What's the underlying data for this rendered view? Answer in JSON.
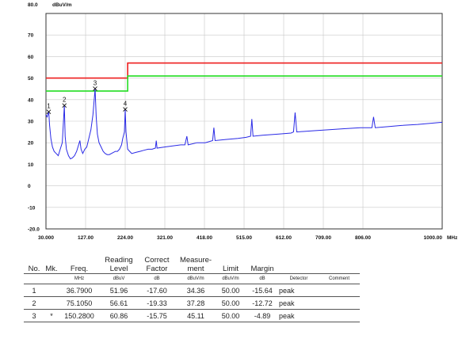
{
  "chart_data": {
    "type": "line",
    "ylabel": "dBuV/m",
    "xlabel": "MHz",
    "xlim": [
      30,
      1000
    ],
    "ylim": [
      -20,
      80
    ],
    "x_ticks": [
      "30.000",
      "127.00",
      "224.00",
      "321.00",
      "418.00",
      "515.00",
      "612.00",
      "709.00",
      "806.00",
      "1000.00"
    ],
    "x_tick_values": [
      30,
      127,
      224,
      321,
      418,
      515,
      612,
      709,
      806,
      1000
    ],
    "y_ticks": [
      "80.0",
      "70",
      "60",
      "50",
      "40",
      "30",
      "20",
      "10",
      "0",
      "-10",
      "-20.0"
    ],
    "y_tick_values": [
      80,
      70,
      60,
      50,
      40,
      30,
      20,
      10,
      0,
      -10,
      -20
    ],
    "grid": true,
    "limit_lines": [
      {
        "color": "#ee1c1c",
        "points": [
          [
            30,
            50
          ],
          [
            230,
            50
          ],
          [
            230,
            57
          ],
          [
            1000,
            57
          ]
        ]
      },
      {
        "color": "#22dd22",
        "points": [
          [
            30,
            44
          ],
          [
            230,
            44
          ],
          [
            230,
            51
          ],
          [
            1000,
            51
          ]
        ]
      }
    ],
    "trace": {
      "color": "#2a2ae6",
      "points": [
        [
          30,
          33
        ],
        [
          33,
          32
        ],
        [
          36.79,
          34.4
        ],
        [
          39,
          28
        ],
        [
          42,
          22
        ],
        [
          46,
          18
        ],
        [
          50,
          16
        ],
        [
          55,
          15
        ],
        [
          60,
          14
        ],
        [
          65,
          17
        ],
        [
          70,
          20
        ],
        [
          75.1,
          37.3
        ],
        [
          77,
          23
        ],
        [
          80,
          17
        ],
        [
          85,
          14
        ],
        [
          90,
          12.5
        ],
        [
          95,
          13
        ],
        [
          100,
          14
        ],
        [
          105,
          16
        ],
        [
          110,
          19
        ],
        [
          113,
          21
        ],
        [
          116,
          17
        ],
        [
          120,
          15
        ],
        [
          125,
          17
        ],
        [
          130,
          18
        ],
        [
          135,
          22
        ],
        [
          140,
          26
        ],
        [
          145,
          33
        ],
        [
          150.28,
          45.1
        ],
        [
          153,
          32
        ],
        [
          156,
          24
        ],
        [
          160,
          20
        ],
        [
          165,
          18
        ],
        [
          170,
          16
        ],
        [
          175,
          15
        ],
        [
          180,
          14.5
        ],
        [
          185,
          14.5
        ],
        [
          190,
          15
        ],
        [
          195,
          15.5
        ],
        [
          200,
          16
        ],
        [
          205,
          16
        ],
        [
          210,
          17
        ],
        [
          215,
          19
        ],
        [
          218,
          22
        ],
        [
          222,
          25
        ],
        [
          224,
          35.5
        ],
        [
          226,
          25
        ],
        [
          230,
          17
        ],
        [
          240,
          15
        ],
        [
          250,
          15.5
        ],
        [
          260,
          16
        ],
        [
          270,
          16.5
        ],
        [
          280,
          17
        ],
        [
          290,
          17
        ],
        [
          298,
          17.5
        ],
        [
          300,
          21
        ],
        [
          302,
          17.5
        ],
        [
          320,
          18
        ],
        [
          340,
          18.5
        ],
        [
          360,
          19
        ],
        [
          370,
          19
        ],
        [
          375,
          23
        ],
        [
          378,
          19
        ],
        [
          400,
          20
        ],
        [
          420,
          20
        ],
        [
          438,
          21
        ],
        [
          441,
          27
        ],
        [
          444,
          21
        ],
        [
          470,
          21.5
        ],
        [
          500,
          22
        ],
        [
          520,
          22.5
        ],
        [
          531,
          23
        ],
        [
          534,
          31
        ],
        [
          537,
          23
        ],
        [
          560,
          23.5
        ],
        [
          600,
          24
        ],
        [
          630,
          24.5
        ],
        [
          636,
          25
        ],
        [
          640,
          34
        ],
        [
          644,
          25
        ],
        [
          680,
          25.5
        ],
        [
          720,
          26
        ],
        [
          760,
          26.5
        ],
        [
          800,
          27
        ],
        [
          828,
          27
        ],
        [
          832,
          32
        ],
        [
          836,
          27
        ],
        [
          870,
          27.5
        ],
        [
          900,
          28
        ],
        [
          940,
          28.5
        ],
        [
          970,
          29
        ],
        [
          1000,
          29.5
        ]
      ]
    },
    "markers": [
      {
        "label": "1",
        "x": 36.79,
        "y": 34.36
      },
      {
        "label": "2",
        "x": 75.105,
        "y": 37.28
      },
      {
        "label": "3",
        "x": 150.28,
        "y": 45.11
      },
      {
        "label": "4",
        "x": 224.0,
        "y": 35.5
      }
    ]
  },
  "table": {
    "headers": [
      "No.",
      "Mk.",
      "Freq.",
      "Reading\nLevel",
      "Correct\nFactor",
      "Measure-\nment",
      "Limit",
      "Margin",
      "",
      ""
    ],
    "units": [
      "",
      "",
      "MHz",
      "dBuV",
      "dB",
      "dBuV/m",
      "dBuV/m",
      "dB",
      "Detector",
      "Comment"
    ],
    "rows": [
      [
        "1",
        "",
        "36.7900",
        "51.96",
        "-17.60",
        "34.36",
        "50.00",
        "-15.64",
        "peak",
        ""
      ],
      [
        "2",
        "",
        "75.1050",
        "56.61",
        "-19.33",
        "37.28",
        "50.00",
        "-12.72",
        "peak",
        ""
      ],
      [
        "3",
        "*",
        "150.2800",
        "60.86",
        "-15.75",
        "45.11",
        "50.00",
        "-4.89",
        "peak",
        ""
      ]
    ]
  }
}
